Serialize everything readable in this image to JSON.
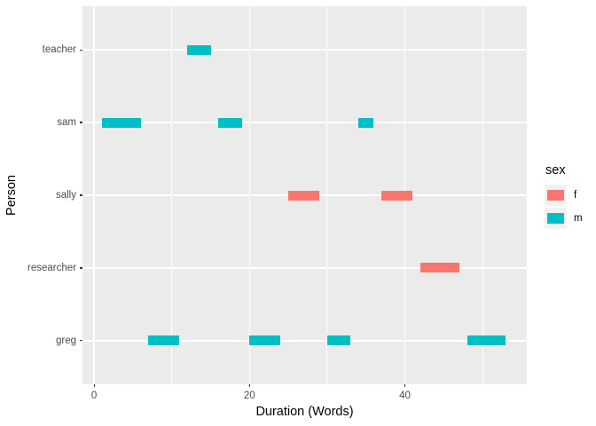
{
  "chart_data": {
    "type": "segment",
    "title": "",
    "xlabel": "Duration (Words)",
    "ylabel": "Person",
    "xlim": [
      -1.5,
      55.7
    ],
    "x_major_ticks": [
      0,
      20,
      40
    ],
    "x_minor_ticks": [
      10,
      30,
      50
    ],
    "categories_top_to_bottom": [
      "teacher",
      "sam",
      "sally",
      "researcher",
      "greg"
    ],
    "segments": [
      {
        "person": "teacher",
        "sex": "m",
        "start": 12,
        "end": 15
      },
      {
        "person": "sam",
        "sex": "m",
        "start": 1,
        "end": 6
      },
      {
        "person": "sam",
        "sex": "m",
        "start": 16,
        "end": 19
      },
      {
        "person": "sam",
        "sex": "m",
        "start": 34,
        "end": 36
      },
      {
        "person": "sally",
        "sex": "f",
        "start": 25,
        "end": 29
      },
      {
        "person": "sally",
        "sex": "f",
        "start": 37,
        "end": 41
      },
      {
        "person": "researcher",
        "sex": "f",
        "start": 42,
        "end": 47
      },
      {
        "person": "greg",
        "sex": "m",
        "start": 7,
        "end": 11
      },
      {
        "person": "greg",
        "sex": "m",
        "start": 20,
        "end": 24
      },
      {
        "person": "greg",
        "sex": "m",
        "start": 30,
        "end": 33
      },
      {
        "person": "greg",
        "sex": "m",
        "start": 48,
        "end": 53
      }
    ],
    "colors": {
      "f": "#F8766D",
      "m": "#00BFC4"
    },
    "panel_background": "#EBEBEB",
    "grid_color": "#FFFFFF",
    "axis_text_color": "#4D4D4D",
    "legend": {
      "title": "sex",
      "position": "right",
      "key_background": "#F2F2F2",
      "entries": [
        {
          "label": "f",
          "color": "#F8766D"
        },
        {
          "label": "m",
          "color": "#00BFC4"
        }
      ]
    }
  }
}
